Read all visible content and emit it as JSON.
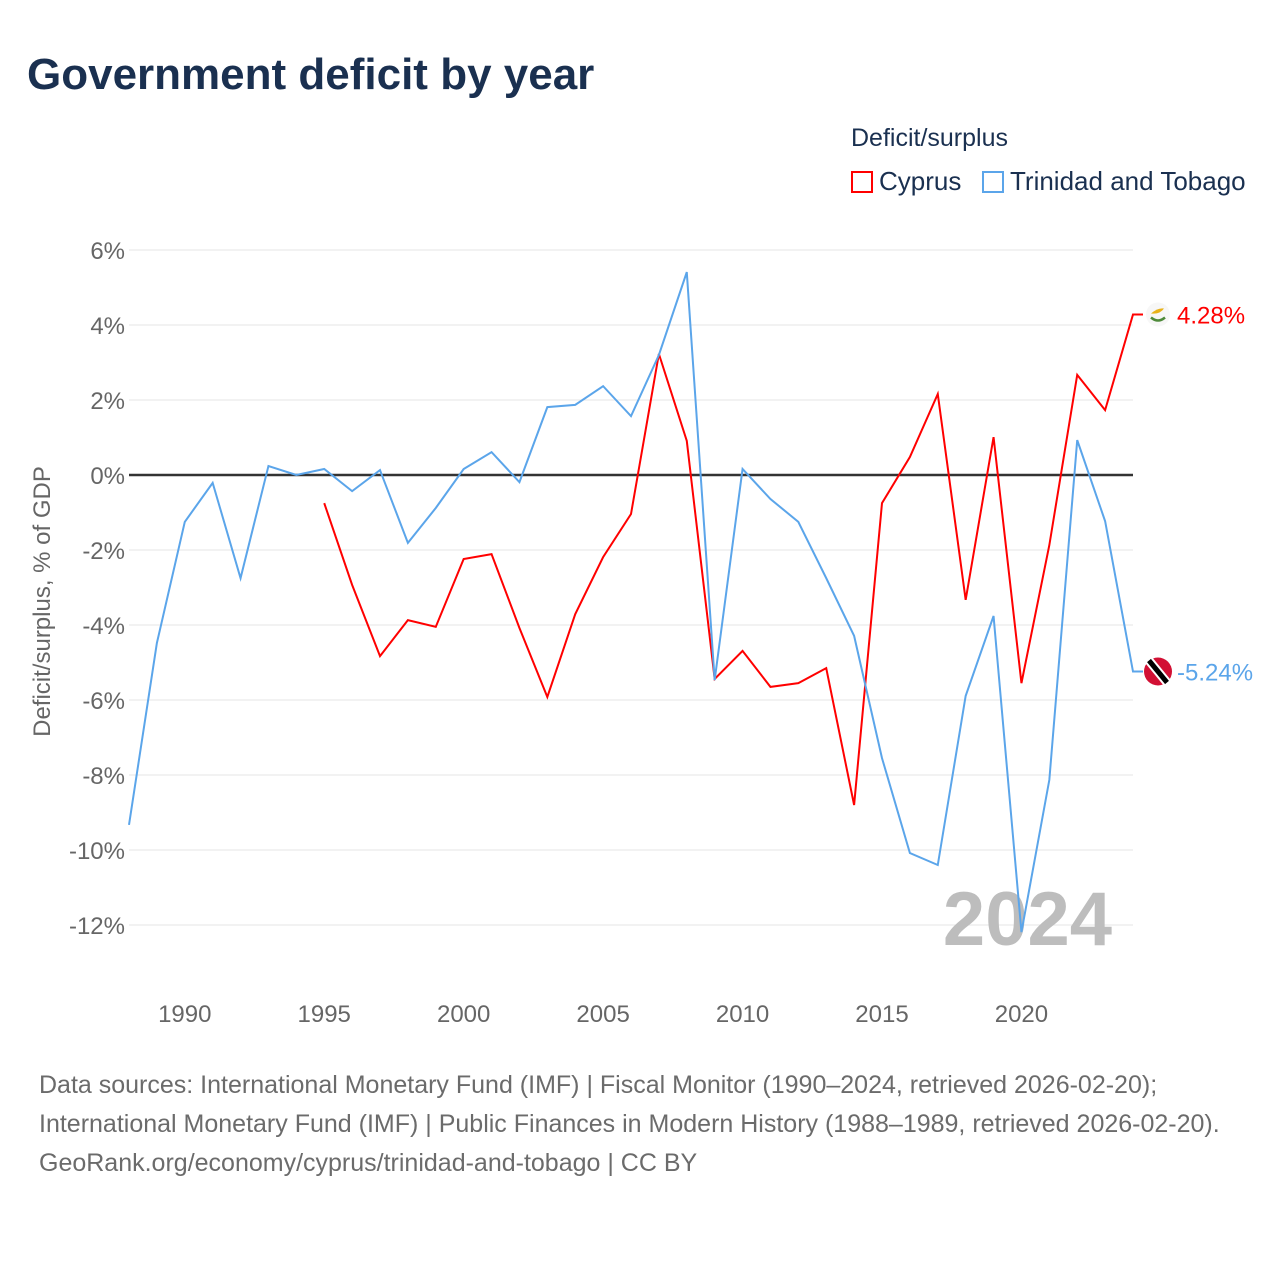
{
  "chart_data": {
    "type": "line",
    "title": "Government deficit by year",
    "ylabel": "Deficit/surplus, % of GDP",
    "xlabel": "",
    "legend_title": "Deficit/surplus",
    "legend_placement": "top-right",
    "ylim": [
      -12,
      6
    ],
    "xlim": [
      1988,
      2024
    ],
    "yticks": [
      6,
      4,
      2,
      0,
      -2,
      -4,
      -6,
      -8,
      -10,
      -12
    ],
    "ytick_labels": [
      "6%",
      "4%",
      "2%",
      "0%",
      "-2%",
      "-4%",
      "-6%",
      "-8%",
      "-10%",
      "-12%"
    ],
    "xticks": [
      1990,
      1995,
      2000,
      2005,
      2010,
      2015,
      2020
    ],
    "xtick_labels": [
      "1990",
      "1995",
      "2000",
      "2005",
      "2010",
      "2015",
      "2020"
    ],
    "grid": true,
    "current_year_label": "2024",
    "series": [
      {
        "name": "Cyprus",
        "color": "#ff0000",
        "end_label": "4.28%",
        "flag_icon": "cyprus-flag",
        "x": [
          1995,
          1996,
          1997,
          1998,
          1999,
          2000,
          2001,
          2002,
          2003,
          2004,
          2005,
          2006,
          2007,
          2008,
          2009,
          2010,
          2011,
          2012,
          2013,
          2014,
          2015,
          2016,
          2017,
          2018,
          2019,
          2020,
          2021,
          2022,
          2023,
          2024
        ],
        "values": [
          -0.75,
          -2.93,
          -4.83,
          -3.87,
          -4.05,
          -2.24,
          -2.11,
          -4.08,
          -5.92,
          -3.71,
          -2.19,
          -1.04,
          3.23,
          0.91,
          -5.44,
          -4.69,
          -5.65,
          -5.55,
          -5.15,
          -8.8,
          -0.75,
          0.48,
          2.16,
          -3.33,
          1.01,
          -5.55,
          -1.87,
          2.67,
          1.73,
          4.28
        ]
      },
      {
        "name": "Trinidad and Tobago",
        "color": "#5ba5ea",
        "end_label": "-5.24%",
        "flag_icon": "trinidad-and-tobago-flag",
        "x": [
          1988,
          1989,
          1990,
          1991,
          1992,
          1993,
          1994,
          1995,
          1996,
          1997,
          1998,
          1999,
          2000,
          2001,
          2002,
          2003,
          2004,
          2005,
          2006,
          2007,
          2008,
          2009,
          2010,
          2011,
          2012,
          2013,
          2014,
          2015,
          2016,
          2017,
          2018,
          2019,
          2020,
          2021,
          2022,
          2023,
          2024
        ],
        "values": [
          -9.33,
          -4.48,
          -1.25,
          -0.21,
          -2.75,
          0.24,
          0.0,
          0.16,
          -0.43,
          0.13,
          -1.81,
          -0.88,
          0.16,
          0.61,
          -0.19,
          1.81,
          1.87,
          2.37,
          1.57,
          3.2,
          5.41,
          -5.47,
          0.16,
          -0.64,
          -1.25,
          -2.75,
          -4.29,
          -7.55,
          -10.08,
          -10.4,
          -5.89,
          -3.76,
          -12.19,
          -8.13,
          0.93,
          -1.23,
          -5.24
        ]
      }
    ]
  },
  "source": {
    "line1": "Data sources: International Monetary Fund (IMF) | Fiscal Monitor (1990–2024, retrieved 2026-02-20); International Monetary Fund (IMF) | Public Finances in Modern History (1988–1989, retrieved 2026-02-20).",
    "line2": "GeoRank.org/economy/cyprus/trinidad-and-tobago | CC BY"
  }
}
